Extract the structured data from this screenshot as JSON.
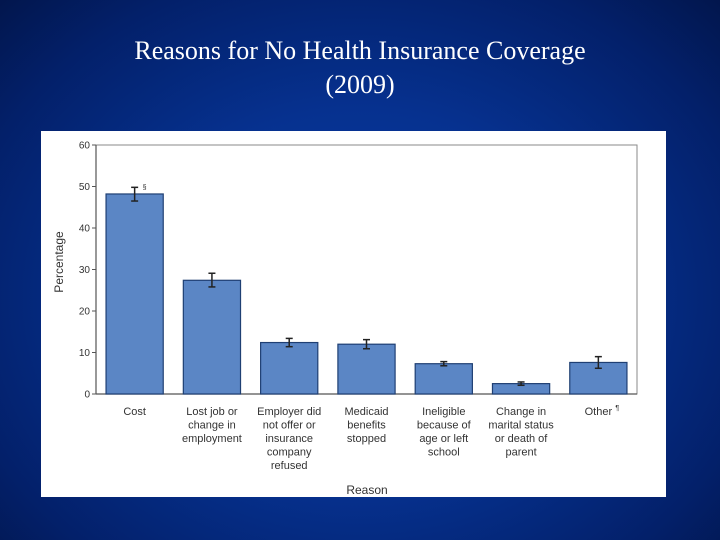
{
  "slide": {
    "title_line1": "Reasons for No Health Insurance Coverage",
    "title_line2": "(2009)"
  },
  "chart_data": {
    "type": "bar",
    "title": "Reasons for No Health Insurance Coverage (2009)",
    "xlabel": "Reason",
    "ylabel": "Percentage",
    "ylim": [
      0,
      60
    ],
    "yticks": [
      0,
      10,
      20,
      30,
      40,
      50,
      60
    ],
    "grid": false,
    "bar_color": "#5b86c5",
    "categories": [
      {
        "lines": [
          "Cost"
        ],
        "marker": "§"
      },
      {
        "lines": [
          "Lost job or",
          "change in",
          "employment"
        ],
        "marker": ""
      },
      {
        "lines": [
          "Employer did",
          "not offer or",
          "insurance",
          "company",
          "refused"
        ],
        "marker": ""
      },
      {
        "lines": [
          "Medicaid",
          "benefits",
          "stopped"
        ],
        "marker": ""
      },
      {
        "lines": [
          "Ineligible",
          "because of",
          "age or left",
          "school"
        ],
        "marker": ""
      },
      {
        "lines": [
          "Change in",
          "marital status",
          "or death of",
          "parent"
        ],
        "marker": ""
      },
      {
        "lines": [
          "Other"
        ],
        "marker": "¶"
      }
    ],
    "values": [
      48.2,
      27.4,
      12.4,
      12.0,
      7.3,
      2.5,
      7.6
    ],
    "error_low": [
      46.5,
      25.8,
      11.4,
      10.9,
      6.8,
      2.1,
      6.2
    ],
    "error_high": [
      49.8,
      29.1,
      13.4,
      13.1,
      7.8,
      2.9,
      9.0
    ]
  }
}
